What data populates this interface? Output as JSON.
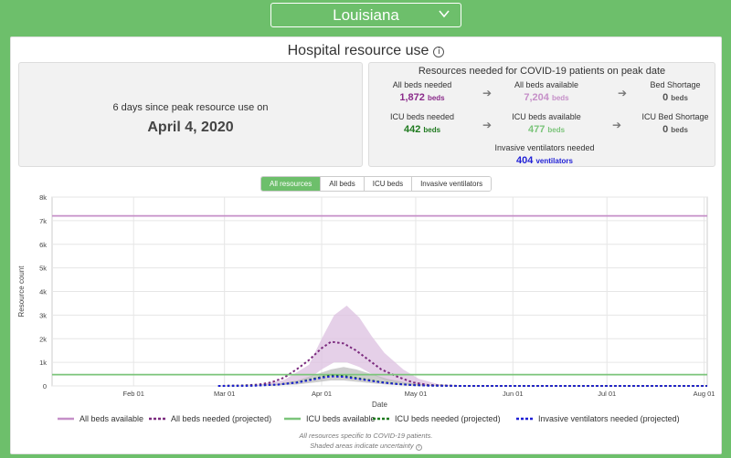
{
  "header": {
    "state": "Louisiana"
  },
  "title": "Hospital resource use",
  "peak": {
    "days_text": "6 days since peak resource use on",
    "date": "April 4, 2020"
  },
  "resources": {
    "title": "Resources needed for COVID-19 patients on peak date",
    "all_beds_needed": {
      "label": "All beds needed",
      "value": "1,872",
      "unit": "beds"
    },
    "all_beds_available": {
      "label": "All beds available",
      "value": "7,204",
      "unit": "beds"
    },
    "bed_shortage": {
      "label": "Bed Shortage",
      "value": "0",
      "unit": "beds"
    },
    "icu_beds_needed": {
      "label": "ICU beds needed",
      "value": "442",
      "unit": "beds"
    },
    "icu_beds_available": {
      "label": "ICU beds available",
      "value": "477",
      "unit": "beds"
    },
    "icu_bed_shortage": {
      "label": "ICU Bed Shortage",
      "value": "0",
      "unit": "beds"
    },
    "ventilators_needed": {
      "label": "Invasive ventilators needed",
      "value": "404",
      "unit": "ventilators"
    }
  },
  "tabs": [
    "All resources",
    "All beds",
    "ICU beds",
    "Invasive ventilators"
  ],
  "active_tab": 0,
  "colors": {
    "all_beds": "#c58fc8",
    "all_beds_needed": "#7b2a7e",
    "icu_available": "#7bc47a",
    "icu_needed": "#1f7a1f",
    "ventilators": "#1f1fd6",
    "band_all": "#dcc0e0",
    "band_icu": "#b9b9b9"
  },
  "footnote": {
    "line1": "All resources specific to COVID-19 patients.",
    "line2": "Shaded areas indicate uncertainty"
  },
  "chart_data": {
    "type": "line",
    "xlabel": "Date",
    "ylabel": "Resource count",
    "x_ticks": [
      "Feb 01",
      "Mar 01",
      "Apr 01",
      "May 01",
      "Jun 01",
      "Jul 01",
      "Aug 01"
    ],
    "y_ticks": [
      "0",
      "1k",
      "2k",
      "3k",
      "4k",
      "5k",
      "6k",
      "7k",
      "8k"
    ],
    "xlim": [
      "2020-01-06",
      "2020-08-02"
    ],
    "ylim": [
      0,
      8000
    ],
    "grid": true,
    "legend_position": "bottom",
    "series": [
      {
        "name": "All beds available",
        "style": "solid",
        "color_key": "all_beds",
        "x": [
          "2020-01-06",
          "2020-08-02"
        ],
        "y": [
          7204,
          7204
        ]
      },
      {
        "name": "All beds needed (projected)",
        "style": "dotted",
        "color_key": "all_beds_needed",
        "x": [
          "2020-02-28",
          "2020-03-07",
          "2020-03-12",
          "2020-03-16",
          "2020-03-20",
          "2020-03-24",
          "2020-03-28",
          "2020-04-01",
          "2020-04-04",
          "2020-04-08",
          "2020-04-12",
          "2020-04-16",
          "2020-04-20",
          "2020-04-25",
          "2020-04-30",
          "2020-05-05",
          "2020-05-15",
          "2020-08-02"
        ],
        "y": [
          0,
          20,
          60,
          150,
          350,
          700,
          1100,
          1600,
          1872,
          1800,
          1500,
          1100,
          700,
          400,
          150,
          40,
          0,
          0
        ]
      },
      {
        "name": "ICU beds available",
        "style": "solid",
        "color_key": "icu_available",
        "x": [
          "2020-01-06",
          "2020-08-02"
        ],
        "y": [
          477,
          477
        ]
      },
      {
        "name": "ICU beds needed (projected)",
        "style": "dotted",
        "color_key": "icu_needed",
        "x": [
          "2020-02-28",
          "2020-03-10",
          "2020-03-18",
          "2020-03-24",
          "2020-03-28",
          "2020-04-01",
          "2020-04-04",
          "2020-04-08",
          "2020-04-12",
          "2020-04-16",
          "2020-04-20",
          "2020-04-25",
          "2020-04-30",
          "2020-05-05",
          "2020-05-15",
          "2020-08-02"
        ],
        "y": [
          0,
          10,
          60,
          150,
          260,
          380,
          442,
          420,
          340,
          250,
          160,
          90,
          40,
          15,
          0,
          0
        ]
      },
      {
        "name": "Invasive ventilators needed (projected)",
        "style": "dotted",
        "color_key": "ventilators",
        "x": [
          "2020-02-28",
          "2020-03-10",
          "2020-03-18",
          "2020-03-24",
          "2020-03-28",
          "2020-04-01",
          "2020-04-04",
          "2020-04-08",
          "2020-04-12",
          "2020-04-16",
          "2020-04-20",
          "2020-04-25",
          "2020-04-30",
          "2020-05-05",
          "2020-05-15",
          "2020-08-02"
        ],
        "y": [
          0,
          8,
          55,
          140,
          240,
          350,
          404,
          385,
          310,
          230,
          150,
          80,
          35,
          12,
          0,
          0
        ]
      }
    ],
    "uncertainty_bands": [
      {
        "series": "All beds needed (projected)",
        "color_key": "band_all",
        "x": [
          "2020-03-10",
          "2020-03-20",
          "2020-03-28",
          "2020-04-01",
          "2020-04-05",
          "2020-04-09",
          "2020-04-13",
          "2020-04-17",
          "2020-04-21",
          "2020-04-27",
          "2020-05-02",
          "2020-05-08",
          "2020-05-15"
        ],
        "upper": [
          0,
          250,
          900,
          2000,
          3000,
          3400,
          2900,
          2100,
          1400,
          700,
          300,
          80,
          0
        ],
        "lower": [
          0,
          60,
          300,
          700,
          1000,
          1000,
          800,
          500,
          250,
          100,
          30,
          5,
          0
        ]
      },
      {
        "series": "ICU beds needed (projected)",
        "color_key": "band_icu",
        "x": [
          "2020-03-14",
          "2020-03-24",
          "2020-03-30",
          "2020-04-04",
          "2020-04-08",
          "2020-04-12",
          "2020-04-17",
          "2020-04-22",
          "2020-04-28",
          "2020-05-05",
          "2020-05-12"
        ],
        "upper": [
          0,
          220,
          480,
          700,
          800,
          700,
          500,
          300,
          140,
          40,
          0
        ],
        "lower": [
          0,
          60,
          150,
          230,
          230,
          180,
          110,
          60,
          20,
          5,
          0
        ]
      }
    ]
  }
}
